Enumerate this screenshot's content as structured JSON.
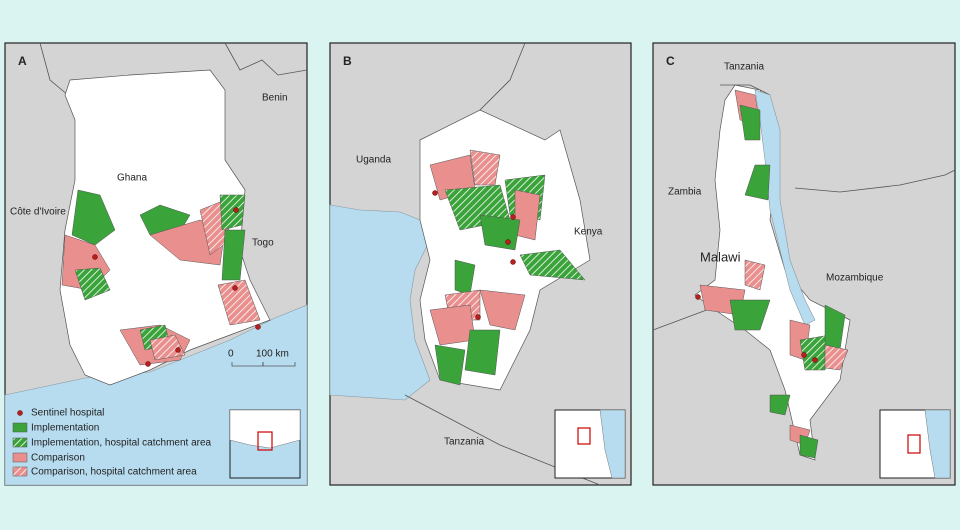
{
  "panels": [
    {
      "label": "A",
      "places": [
        "Benin",
        "Ghana",
        "Côte d'Ivoire",
        "Togo"
      ],
      "scale": [
        "0",
        "100 km"
      ]
    },
    {
      "label": "B",
      "places": [
        "Uganda",
        "Kenya",
        "Tanzania"
      ]
    },
    {
      "label": "C",
      "places": [
        "Tanzania",
        "Zambia",
        "Malawi",
        "Mozambique"
      ]
    }
  ],
  "legend": [
    "Sentinel hospital",
    "Implementation",
    "Implementation, hospital catchment area",
    "Comparison",
    "Comparison, hospital catchment area"
  ]
}
